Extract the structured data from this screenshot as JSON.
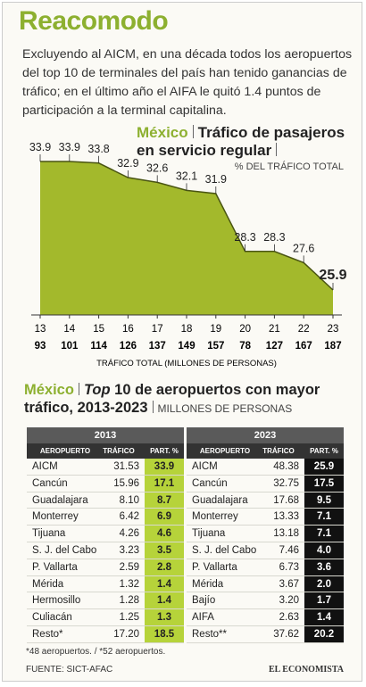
{
  "header": {
    "title": "Reacomodo",
    "intro": "Excluyendo al AICM, en una década todos los aeropuertos del top 10 de terminales del país han tenido ganancias de tráfico; en el último año el AIFA le quitó 1.4 puntos de participación a la terminal capitalina."
  },
  "chart_data": {
    "type": "area",
    "region": "México",
    "title": "Tráfico de pasajeros en servicio regular",
    "subtitle": "% DEL TRÁFICO TOTAL",
    "categories": [
      "13",
      "14",
      "15",
      "16",
      "17",
      "18",
      "19",
      "20",
      "21",
      "22",
      "23"
    ],
    "values": [
      33.9,
      33.9,
      33.8,
      32.9,
      32.6,
      32.1,
      31.9,
      28.3,
      28.3,
      27.6,
      25.9
    ],
    "color": "#a3b92c",
    "line_color": "#4a5512",
    "totals": [
      93,
      101,
      114,
      126,
      137,
      149,
      157,
      78,
      127,
      167,
      187
    ],
    "x_label": "TRÁFICO TOTAL (MILLONES DE PERSONAS)"
  },
  "tables_section": {
    "region": "México",
    "title_italic": "Top",
    "title_rest": "10 de aeropuertos con mayor tráfico, 2013-2023",
    "units": "MILLONES DE PERSONAS",
    "tables": [
      {
        "year": "2013",
        "columns": [
          "AEROPUERTO",
          "TRÁFICO",
          "PART. %"
        ],
        "rows": [
          [
            "AICM",
            "31.53",
            "33.9"
          ],
          [
            "Cancún",
            "15.96",
            "17.1"
          ],
          [
            "Guadalajara",
            "8.10",
            "8.7"
          ],
          [
            "Monterrey",
            "6.42",
            "6.9"
          ],
          [
            "Tijuana",
            "4.26",
            "4.6"
          ],
          [
            "S. J. del Cabo",
            "3.23",
            "3.5"
          ],
          [
            "P. Vallarta",
            "2.59",
            "2.8"
          ],
          [
            "Mérida",
            "1.32",
            "1.4"
          ],
          [
            "Hermosillo",
            "1.28",
            "1.4"
          ],
          [
            "Culiacán",
            "1.25",
            "1.3"
          ],
          [
            "Resto*",
            "17.20",
            "18.5"
          ]
        ]
      },
      {
        "year": "2023",
        "columns": [
          "AEROPUERTO",
          "TRÁFICO",
          "PART. %"
        ],
        "rows": [
          [
            "AICM",
            "48.38",
            "25.9"
          ],
          [
            "Cancún",
            "32.75",
            "17.5"
          ],
          [
            "Guadalajara",
            "17.68",
            "9.5"
          ],
          [
            "Monterrey",
            "13.33",
            "7.1"
          ],
          [
            "Tijuana",
            "13.18",
            "7.1"
          ],
          [
            "S. J. del Cabo",
            "7.46",
            "4.0"
          ],
          [
            "P. Vallarta",
            "6.73",
            "3.6"
          ],
          [
            "Mérida",
            "3.67",
            "2.0"
          ],
          [
            "Bajío",
            "3.20",
            "1.7"
          ],
          [
            "AIFA",
            "2.63",
            "1.4"
          ],
          [
            "Resto**",
            "37.62",
            "20.2"
          ]
        ]
      }
    ]
  },
  "footer": {
    "notes": "*48 aeropuertos. / *52 aeropuertos.",
    "source": "FUENTE: SICT-AFAC",
    "brand": "EL ECONOMISTA"
  }
}
